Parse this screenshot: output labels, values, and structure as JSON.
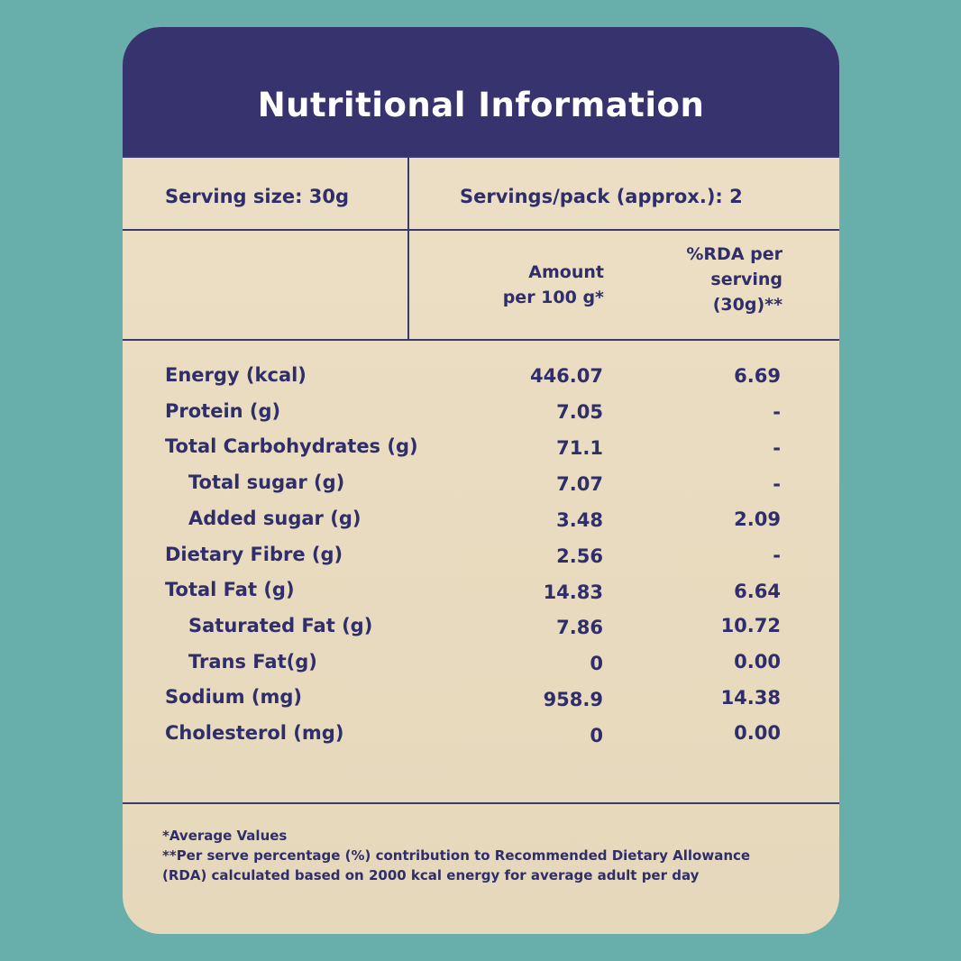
{
  "title": "Nutritional Information",
  "serving": {
    "size": "Serving size: 30g",
    "servings_per_pack": "Servings/pack (approx.): 2"
  },
  "columns": {
    "amount": [
      "Amount",
      "per 100 g*"
    ],
    "rda": [
      "%RDA per",
      "serving",
      "(30g)**"
    ]
  },
  "rows": [
    {
      "label": "Energy (kcal)",
      "amount": "446.07",
      "rda": "6.69"
    },
    {
      "label": "Protein (g)",
      "amount": "7.05",
      "rda": "-"
    },
    {
      "label": "Total Carbohydrates (g)",
      "amount": "71.1",
      "rda": "-"
    },
    {
      "label": "Total sugar (g)",
      "amount": "7.07",
      "rda": "-"
    },
    {
      "label": "Added sugar (g)",
      "amount": "3.48",
      "rda": "2.09"
    },
    {
      "label": "Dietary Fibre (g)",
      "amount": "2.56",
      "rda": "-"
    },
    {
      "label": "Total Fat (g)",
      "amount": "14.83",
      "rda": "6.64"
    },
    {
      "label": "Saturated Fat (g)",
      "amount": "7.86",
      "rda": "10.72"
    },
    {
      "label": "Trans Fat(g)",
      "amount": "0",
      "rda": "0.00"
    },
    {
      "label": "Sodium (mg)",
      "amount": "958.9",
      "rda": "14.38"
    },
    {
      "label": "Cholesterol (mg)",
      "amount": "0",
      "rda": "0.00"
    }
  ],
  "footnotes": [
    "*Average Values",
    "**Per serve percentage (%) contribution to Recommended Dietary Allowance",
    "(RDA) calculated based on 2000 kcal energy for average adult per day"
  ],
  "colors": {
    "background": "#68aeab",
    "header": "#37336f",
    "panel": "#ede0c6",
    "text": "#2f2e6b",
    "title_text": "#ffffff"
  }
}
